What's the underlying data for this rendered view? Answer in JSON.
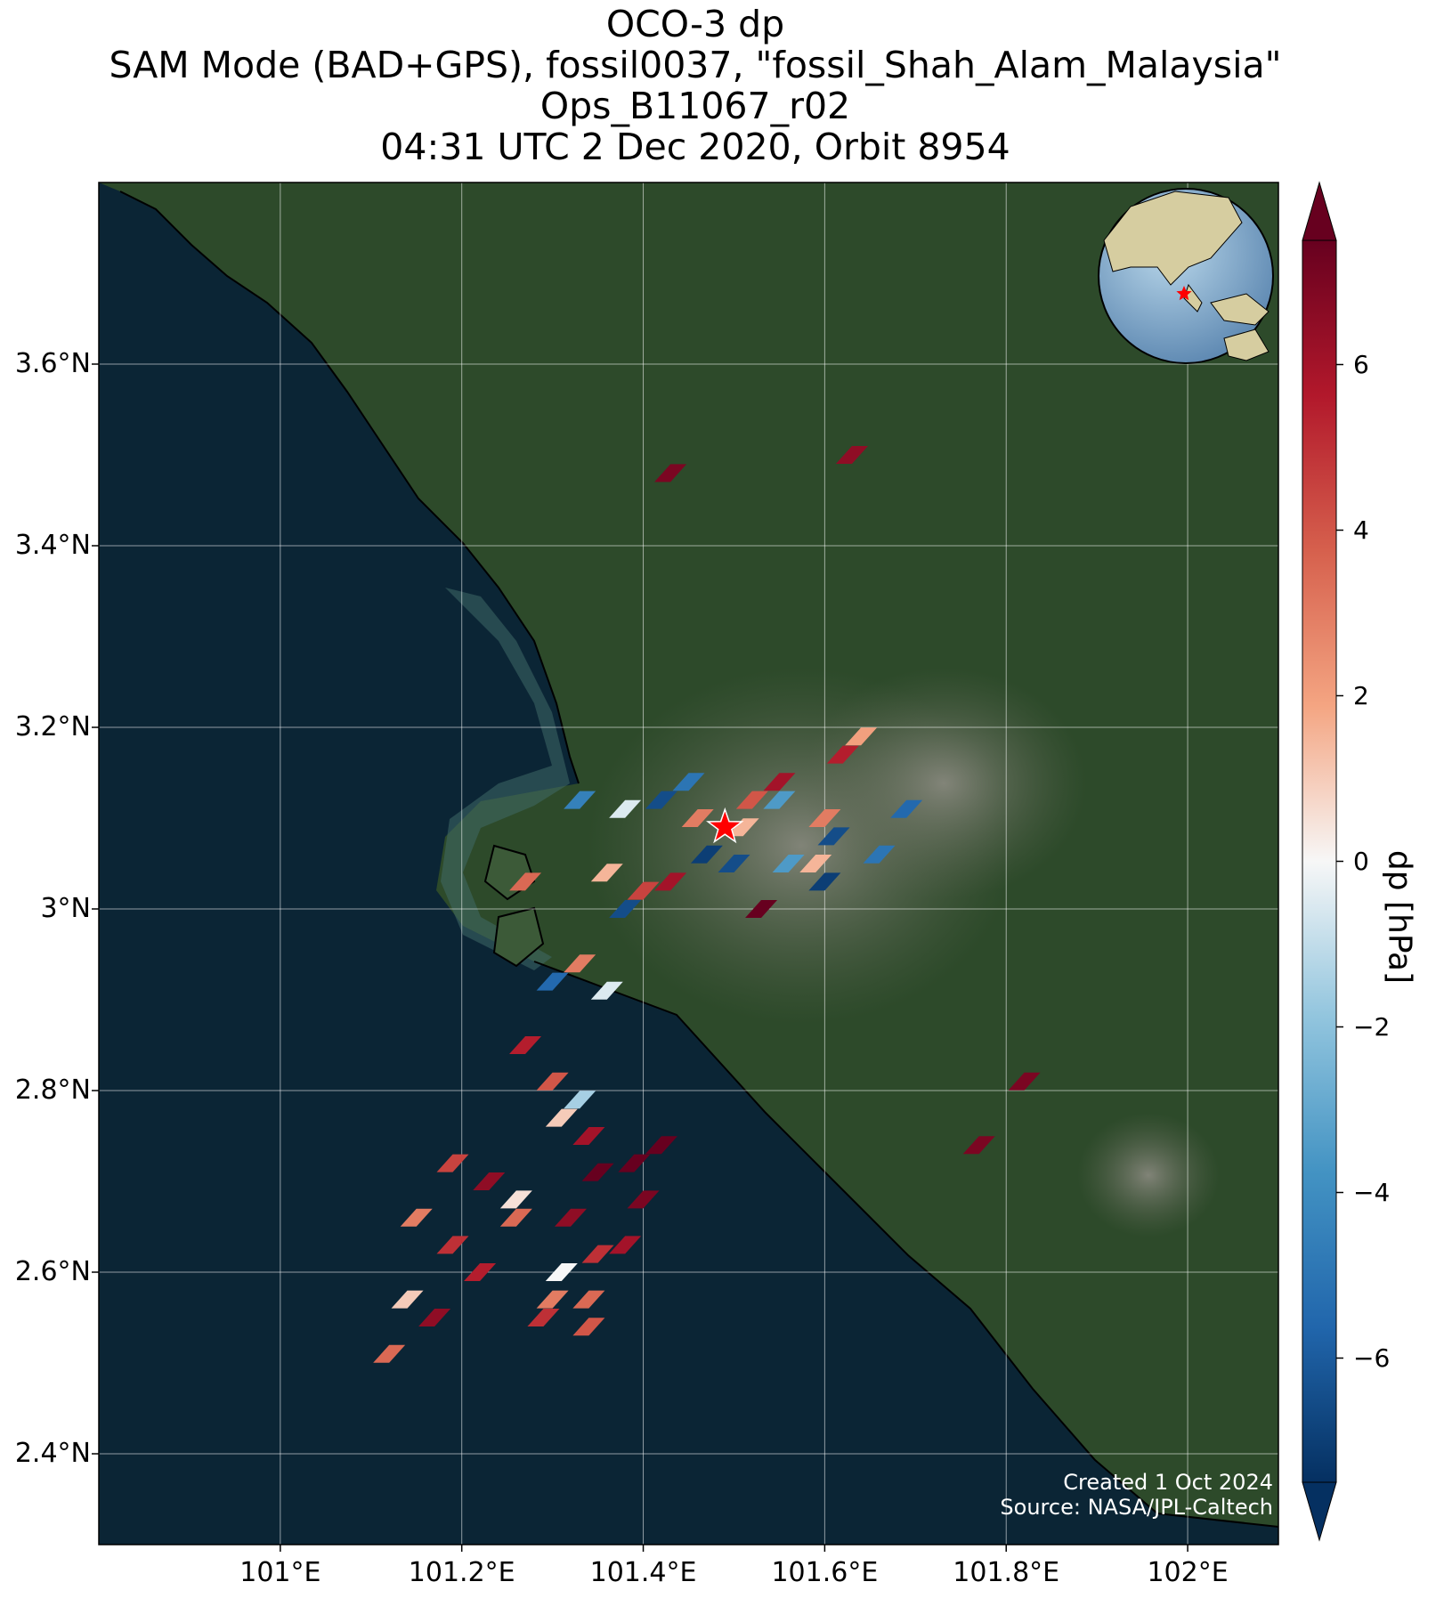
{
  "title": {
    "line1": "OCO-3 dp",
    "line2": "SAM Mode (BAD+GPS), fossil0037, \"fossil_Shah_Alam_Malaysia\"",
    "line3": "Ops_B11067_r02",
    "line4": "04:31 UTC 2 Dec 2020, Orbit 8954"
  },
  "map": {
    "lon_range": [
      100.8,
      102.1
    ],
    "lat_range": [
      2.3,
      3.8
    ],
    "lat_ticks": [
      "3.6°N",
      "3.4°N",
      "3.2°N",
      "3°N",
      "2.8°N",
      "2.6°N",
      "2.4°N"
    ],
    "lat_tick_values": [
      3.6,
      3.4,
      3.2,
      3.0,
      2.8,
      2.6,
      2.4
    ],
    "lon_ticks": [
      "101°E",
      "101.2°E",
      "101.4°E",
      "101.6°E",
      "101.8°E",
      "102°E"
    ],
    "lon_tick_values": [
      101.0,
      101.2,
      101.4,
      101.6,
      101.8,
      102.0
    ],
    "grid": true,
    "target_marker": {
      "name": "red-star",
      "lon": 101.49,
      "lat": 3.09,
      "color": "#ff0000"
    },
    "inset_globe": {
      "position": "top-right",
      "marker_color": "#ff0000"
    },
    "colors": {
      "sea": "#0b2535",
      "land": "#2d4a2a",
      "urban": "#6b6f62",
      "coast": "#000000"
    }
  },
  "colorbar": {
    "label": "dp [hPa]",
    "range": [
      -7.5,
      7.5
    ],
    "ticks": [
      "6",
      "4",
      "2",
      "0",
      "−2",
      "−4",
      "−6"
    ],
    "tick_values": [
      6,
      4,
      2,
      0,
      -2,
      -4,
      -6
    ],
    "colormap": "RdBu_r",
    "extend": "both"
  },
  "credits": {
    "created": "Created 1 Oct 2024",
    "source": "Source: NASA/JPL-Caltech"
  },
  "chart_data": {
    "type": "heatmap",
    "title": "OCO-3 dp",
    "xlabel": "",
    "ylabel": "",
    "xlim": [
      100.8,
      102.1
    ],
    "ylim": [
      2.3,
      3.8
    ],
    "value_label": "dp [hPa]",
    "vrange": [
      -7.5,
      7.5
    ],
    "cells": [
      {
        "lon": 101.43,
        "lat": 3.48,
        "dp": 7.0
      },
      {
        "lon": 101.63,
        "lat": 3.5,
        "dp": 6.5
      },
      {
        "lon": 101.55,
        "lat": 3.14,
        "dp": 6.0
      },
      {
        "lon": 101.52,
        "lat": 3.12,
        "dp": 4.0
      },
      {
        "lon": 101.51,
        "lat": 3.09,
        "dp": 1.5
      },
      {
        "lon": 101.47,
        "lat": 3.06,
        "dp": -7.0
      },
      {
        "lon": 101.5,
        "lat": 3.05,
        "dp": -6.5
      },
      {
        "lon": 101.42,
        "lat": 3.12,
        "dp": -6.5
      },
      {
        "lon": 101.38,
        "lat": 3.11,
        "dp": -0.5
      },
      {
        "lon": 101.33,
        "lat": 3.12,
        "dp": -4.5
      },
      {
        "lon": 101.36,
        "lat": 3.04,
        "dp": 1.5
      },
      {
        "lon": 101.4,
        "lat": 3.02,
        "dp": 4.5
      },
      {
        "lon": 101.38,
        "lat": 3.0,
        "dp": -6.5
      },
      {
        "lon": 101.43,
        "lat": 3.03,
        "dp": 6.0
      },
      {
        "lon": 101.33,
        "lat": 2.94,
        "dp": 3.0
      },
      {
        "lon": 101.3,
        "lat": 2.92,
        "dp": -5.5
      },
      {
        "lon": 101.36,
        "lat": 2.91,
        "dp": -0.5
      },
      {
        "lon": 101.55,
        "lat": 3.12,
        "dp": -3.5
      },
      {
        "lon": 101.6,
        "lat": 3.1,
        "dp": 3.0
      },
      {
        "lon": 101.62,
        "lat": 3.17,
        "dp": 5.5
      },
      {
        "lon": 101.64,
        "lat": 3.19,
        "dp": 2.0
      },
      {
        "lon": 101.61,
        "lat": 3.08,
        "dp": -6.5
      },
      {
        "lon": 101.59,
        "lat": 3.05,
        "dp": 1.5
      },
      {
        "lon": 101.56,
        "lat": 3.05,
        "dp": -3.5
      },
      {
        "lon": 101.66,
        "lat": 3.06,
        "dp": -5.0
      },
      {
        "lon": 101.6,
        "lat": 3.03,
        "dp": -7.0
      },
      {
        "lon": 101.69,
        "lat": 3.11,
        "dp": -5.5
      },
      {
        "lon": 101.53,
        "lat": 3.0,
        "dp": 7.5
      },
      {
        "lon": 101.45,
        "lat": 3.14,
        "dp": -5.0
      },
      {
        "lon": 101.46,
        "lat": 3.1,
        "dp": 3.0
      },
      {
        "lon": 101.27,
        "lat": 3.03,
        "dp": 3.5
      },
      {
        "lon": 101.27,
        "lat": 2.85,
        "dp": 5.5
      },
      {
        "lon": 101.3,
        "lat": 2.81,
        "dp": 4.0
      },
      {
        "lon": 101.31,
        "lat": 2.77,
        "dp": 1.0
      },
      {
        "lon": 101.33,
        "lat": 2.79,
        "dp": -1.5
      },
      {
        "lon": 101.34,
        "lat": 2.75,
        "dp": 6.0
      },
      {
        "lon": 101.35,
        "lat": 2.71,
        "dp": 7.5
      },
      {
        "lon": 101.39,
        "lat": 2.72,
        "dp": 7.5
      },
      {
        "lon": 101.4,
        "lat": 2.68,
        "dp": 7.0
      },
      {
        "lon": 101.42,
        "lat": 2.74,
        "dp": 7.5
      },
      {
        "lon": 101.19,
        "lat": 2.72,
        "dp": 4.5
      },
      {
        "lon": 101.23,
        "lat": 2.7,
        "dp": 6.5
      },
      {
        "lon": 101.26,
        "lat": 2.68,
        "dp": 0.5
      },
      {
        "lon": 101.15,
        "lat": 2.66,
        "dp": 3.0
      },
      {
        "lon": 101.19,
        "lat": 2.63,
        "dp": 5.0
      },
      {
        "lon": 101.22,
        "lat": 2.6,
        "dp": 5.5
      },
      {
        "lon": 101.26,
        "lat": 2.66,
        "dp": 3.5
      },
      {
        "lon": 101.32,
        "lat": 2.66,
        "dp": 6.5
      },
      {
        "lon": 101.35,
        "lat": 2.62,
        "dp": 5.0
      },
      {
        "lon": 101.31,
        "lat": 2.6,
        "dp": 0.0
      },
      {
        "lon": 101.38,
        "lat": 2.63,
        "dp": 6.0
      },
      {
        "lon": 101.34,
        "lat": 2.57,
        "dp": 3.5
      },
      {
        "lon": 101.3,
        "lat": 2.57,
        "dp": 3.0
      },
      {
        "lon": 101.14,
        "lat": 2.57,
        "dp": 1.0
      },
      {
        "lon": 101.17,
        "lat": 2.55,
        "dp": 6.5
      },
      {
        "lon": 101.12,
        "lat": 2.51,
        "dp": 3.5
      },
      {
        "lon": 101.34,
        "lat": 2.54,
        "dp": 4.0
      },
      {
        "lon": 101.29,
        "lat": 2.55,
        "dp": 5.0
      },
      {
        "lon": 101.77,
        "lat": 2.74,
        "dp": 7.0
      },
      {
        "lon": 101.82,
        "lat": 2.81,
        "dp": 7.0
      }
    ]
  }
}
